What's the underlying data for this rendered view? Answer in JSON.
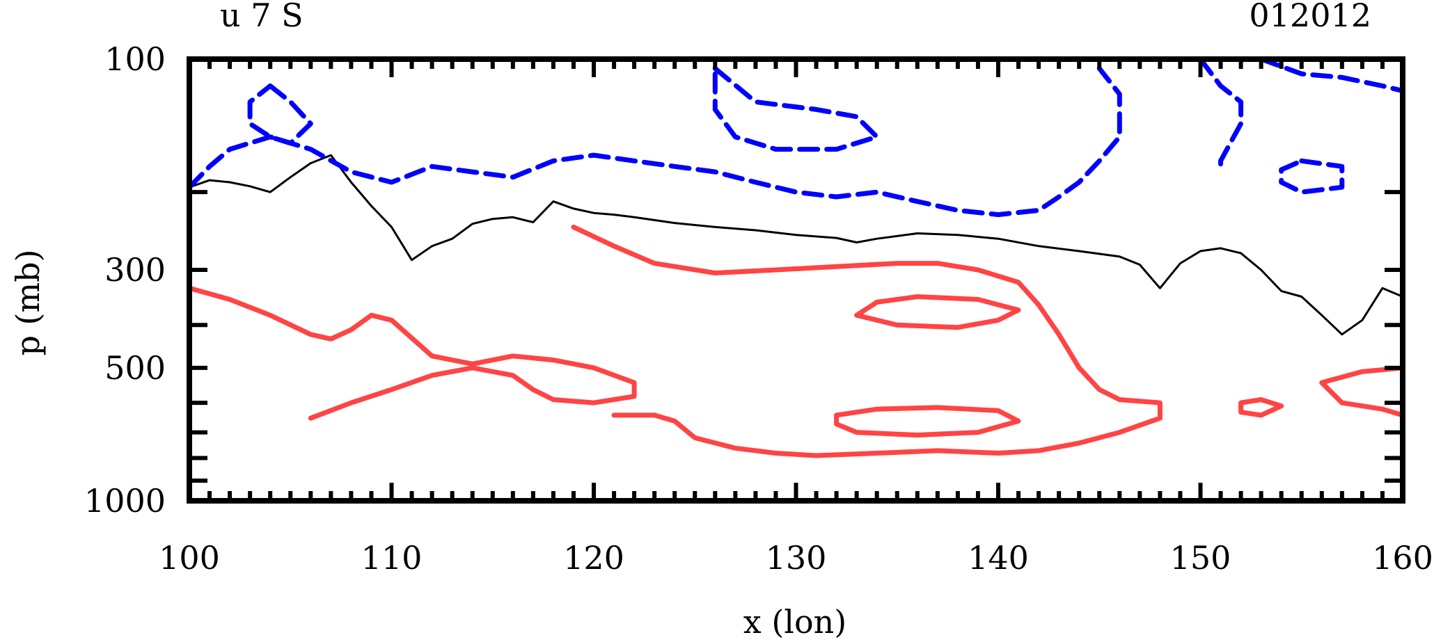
{
  "chart_data": {
    "type": "contour",
    "title_left": "u 7 S",
    "title_right": "012012",
    "xlabel": "x (lon)",
    "ylabel": "p (mb)",
    "xlim": [
      100,
      160
    ],
    "ylim": [
      1000,
      100
    ],
    "x_ticks": [
      "100",
      "110",
      "120",
      "130",
      "140",
      "150",
      "160"
    ],
    "x_tick_values": [
      100,
      110,
      120,
      130,
      140,
      150,
      160
    ],
    "y_ticks": [
      "100",
      "300",
      "500",
      "1000"
    ],
    "y_tick_values": [
      100,
      300,
      500,
      1000
    ],
    "y_scale": "log",
    "series": [
      {
        "name": "zero-contour",
        "style": "solid",
        "color": "#000000",
        "points": [
          [
            100,
            195
          ],
          [
            101,
            188
          ],
          [
            102,
            190
          ],
          [
            103,
            194
          ],
          [
            104,
            200
          ],
          [
            105,
            185
          ],
          [
            106,
            172
          ],
          [
            107,
            165
          ],
          [
            108,
            190
          ],
          [
            109,
            215
          ],
          [
            110,
            240
          ],
          [
            111,
            285
          ],
          [
            112,
            265
          ],
          [
            113,
            255
          ],
          [
            114,
            236
          ],
          [
            115,
            230
          ],
          [
            116,
            228
          ],
          [
            117,
            234
          ],
          [
            118,
            210
          ],
          [
            119,
            218
          ],
          [
            120,
            223
          ],
          [
            121,
            225
          ],
          [
            122,
            228
          ],
          [
            124,
            235
          ],
          [
            126,
            240
          ],
          [
            128,
            244
          ],
          [
            130,
            250
          ],
          [
            132,
            254
          ],
          [
            133,
            260
          ],
          [
            134,
            255
          ],
          [
            136,
            248
          ],
          [
            138,
            250
          ],
          [
            140,
            255
          ],
          [
            142,
            265
          ],
          [
            144,
            272
          ],
          [
            146,
            280
          ],
          [
            147,
            292
          ],
          [
            148,
            330
          ],
          [
            149,
            290
          ],
          [
            150,
            272
          ],
          [
            151,
            268
          ],
          [
            152,
            275
          ],
          [
            153,
            300
          ],
          [
            154,
            335
          ],
          [
            155,
            345
          ],
          [
            156,
            380
          ],
          [
            157,
            420
          ],
          [
            158,
            390
          ],
          [
            159,
            330
          ],
          [
            160,
            345
          ]
        ]
      },
      {
        "name": "positive-contour-1",
        "style": "solid",
        "color": "#ff4444",
        "points": [
          [
            100,
            330
          ],
          [
            102,
            350
          ],
          [
            104,
            380
          ],
          [
            106,
            420
          ],
          [
            107,
            430
          ],
          [
            108,
            410
          ],
          [
            109,
            380
          ],
          [
            110,
            390
          ],
          [
            112,
            470
          ],
          [
            114,
            490
          ],
          [
            116,
            470
          ],
          [
            118,
            480
          ],
          [
            120,
            500
          ],
          [
            122,
            540
          ],
          [
            122,
            580
          ],
          [
            120,
            600
          ],
          [
            118,
            590
          ],
          [
            117,
            560
          ],
          [
            116,
            520
          ],
          [
            114,
            500
          ],
          [
            112,
            520
          ],
          [
            110,
            560
          ],
          [
            108,
            600
          ],
          [
            106,
            650
          ]
        ]
      },
      {
        "name": "positive-contour-2",
        "style": "solid",
        "color": "#ff4444",
        "points": [
          [
            119,
            240
          ],
          [
            121,
            265
          ],
          [
            123,
            290
          ],
          [
            126,
            305
          ],
          [
            129,
            300
          ],
          [
            132,
            295
          ],
          [
            135,
            290
          ],
          [
            137,
            290
          ],
          [
            139,
            300
          ],
          [
            141,
            320
          ],
          [
            142,
            360
          ],
          [
            143,
            420
          ],
          [
            144,
            500
          ],
          [
            145,
            560
          ],
          [
            146,
            590
          ],
          [
            148,
            600
          ],
          [
            148,
            650
          ],
          [
            146,
            700
          ],
          [
            144,
            740
          ],
          [
            142,
            770
          ],
          [
            140,
            780
          ],
          [
            137,
            770
          ],
          [
            134,
            780
          ],
          [
            131,
            790
          ],
          [
            129,
            780
          ],
          [
            127,
            760
          ],
          [
            125,
            720
          ],
          [
            124,
            660
          ],
          [
            123,
            640
          ],
          [
            121,
            640
          ]
        ]
      },
      {
        "name": "positive-contour-3",
        "style": "solid",
        "color": "#ff4444",
        "points": [
          [
            133,
            380
          ],
          [
            135,
            400
          ],
          [
            138,
            405
          ],
          [
            140,
            390
          ],
          [
            141,
            370
          ],
          [
            139,
            350
          ],
          [
            136,
            345
          ],
          [
            134,
            355
          ],
          [
            133,
            380
          ]
        ]
      },
      {
        "name": "positive-contour-4",
        "style": "solid",
        "color": "#ff4444",
        "points": [
          [
            132,
            640
          ],
          [
            134,
            620
          ],
          [
            137,
            615
          ],
          [
            140,
            625
          ],
          [
            141,
            660
          ],
          [
            139,
            700
          ],
          [
            136,
            710
          ],
          [
            133,
            700
          ],
          [
            132,
            670
          ],
          [
            132,
            640
          ]
        ]
      },
      {
        "name": "positive-contour-5",
        "style": "solid",
        "color": "#ff4444",
        "points": [
          [
            152,
            600
          ],
          [
            153,
            590
          ],
          [
            154,
            610
          ],
          [
            153,
            640
          ],
          [
            152,
            630
          ],
          [
            152,
            600
          ]
        ]
      },
      {
        "name": "positive-contour-6",
        "style": "solid",
        "color": "#ff4444",
        "points": [
          [
            160,
            500
          ],
          [
            158,
            510
          ],
          [
            156,
            540
          ],
          [
            157,
            600
          ],
          [
            159,
            620
          ],
          [
            160,
            640
          ]
        ]
      },
      {
        "name": "negative-contour-1",
        "style": "dashed",
        "color": "#0000ff",
        "points": [
          [
            100,
            195
          ],
          [
            101,
            175
          ],
          [
            102,
            160
          ],
          [
            104,
            150
          ],
          [
            106,
            160
          ],
          [
            108,
            180
          ],
          [
            110,
            190
          ],
          [
            112,
            175
          ],
          [
            114,
            180
          ],
          [
            116,
            185
          ],
          [
            118,
            170
          ],
          [
            120,
            165
          ],
          [
            122,
            170
          ],
          [
            124,
            175
          ],
          [
            126,
            180
          ],
          [
            128,
            190
          ],
          [
            130,
            200
          ],
          [
            132,
            205
          ],
          [
            134,
            200
          ],
          [
            136,
            210
          ],
          [
            138,
            220
          ],
          [
            140,
            225
          ],
          [
            142,
            220
          ],
          [
            143,
            205
          ],
          [
            144,
            190
          ],
          [
            145,
            170
          ],
          [
            146,
            150
          ],
          [
            146,
            120
          ],
          [
            145,
            105
          ]
        ]
      },
      {
        "name": "negative-contour-2",
        "style": "dashed",
        "color": "#0000ff",
        "points": [
          [
            104,
            115
          ],
          [
            105,
            125
          ],
          [
            106,
            140
          ],
          [
            105,
            155
          ],
          [
            104,
            150
          ],
          [
            103,
            140
          ],
          [
            103,
            125
          ],
          [
            104,
            115
          ]
        ]
      },
      {
        "name": "negative-contour-3",
        "style": "dashed",
        "color": "#0000ff",
        "points": [
          [
            126,
            105
          ],
          [
            128,
            125
          ],
          [
            131,
            130
          ],
          [
            133,
            135
          ],
          [
            134,
            150
          ],
          [
            132,
            160
          ],
          [
            129,
            160
          ],
          [
            127,
            150
          ],
          [
            126,
            130
          ],
          [
            126,
            105
          ]
        ]
      },
      {
        "name": "negative-contour-4",
        "style": "dashed",
        "color": "#0000ff",
        "points": [
          [
            155,
            170
          ],
          [
            157,
            175
          ],
          [
            157,
            195
          ],
          [
            155,
            200
          ],
          [
            154,
            190
          ],
          [
            154,
            178
          ],
          [
            155,
            170
          ]
        ]
      },
      {
        "name": "negative-contour-5",
        "style": "dashed",
        "color": "#0000ff",
        "points": [
          [
            150,
            100
          ],
          [
            151,
            115
          ],
          [
            152,
            125
          ],
          [
            152,
            140
          ],
          [
            151,
            170
          ],
          [
            151,
            180
          ]
        ]
      },
      {
        "name": "negative-contour-6",
        "style": "dashed",
        "color": "#0000ff",
        "points": [
          [
            153,
            100
          ],
          [
            155,
            108
          ],
          [
            157,
            110
          ],
          [
            159,
            115
          ],
          [
            160,
            118
          ]
        ]
      }
    ]
  }
}
